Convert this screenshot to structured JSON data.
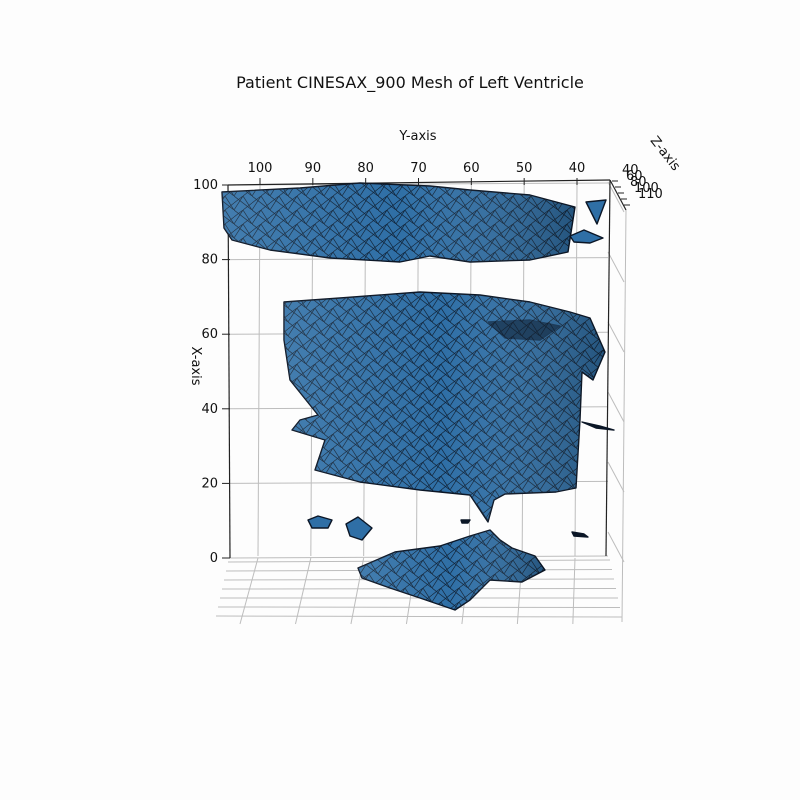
{
  "chart_data": {
    "type": "surface-mesh-3d",
    "title": "Patient CINESAX_900 Mesh of Left Ventricle",
    "xlabel": "X-axis",
    "ylabel": "Y-axis",
    "zlabel": "Z-axis",
    "x_ticks": [
      "0",
      "20",
      "40",
      "60",
      "80",
      "100"
    ],
    "y_ticks": [
      "100",
      "90",
      "80",
      "70",
      "60",
      "50",
      "40"
    ],
    "z_ticks": [
      "40",
      "60",
      "80",
      "100",
      "110"
    ],
    "xlim": [
      0,
      100
    ],
    "ylim": [
      35,
      105
    ],
    "grid": true,
    "colors": {
      "mesh_face": "#2f6fa6",
      "mesh_face_light": "#4f8fc7",
      "mesh_edge": "#0b1626"
    }
  }
}
